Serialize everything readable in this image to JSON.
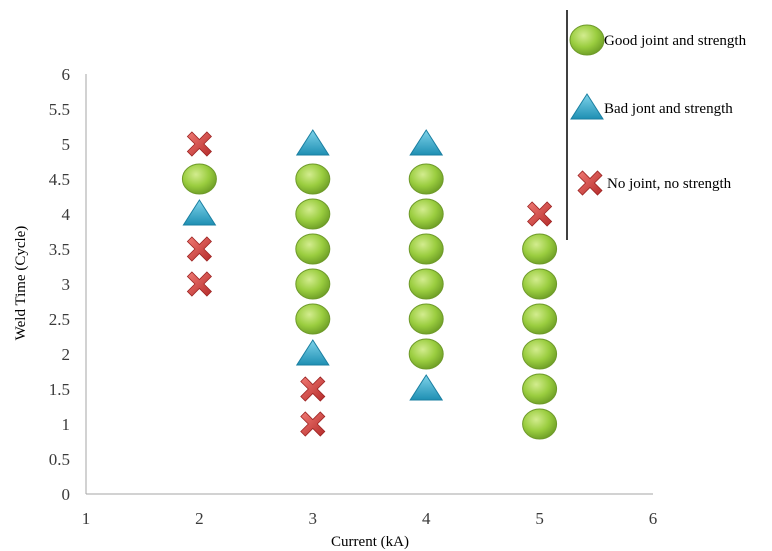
{
  "chart_data": {
    "type": "scatter",
    "title": "",
    "xlabel": "Current (kA)",
    "ylabel": "Weld Time (Cycle)",
    "xlim": [
      1,
      6
    ],
    "ylim": [
      0,
      6
    ],
    "x_ticks": [
      "1",
      "2",
      "3",
      "4",
      "5",
      "6"
    ],
    "y_ticks": [
      "0",
      "0.5",
      "1",
      "1.5",
      "2",
      "2.5",
      "3",
      "3.5",
      "4",
      "4.5",
      "5",
      "5.5",
      "6"
    ],
    "grid": false,
    "legend_position": "top-right",
    "series": [
      {
        "name": "Good joint and strength",
        "marker": "circle",
        "color": "#8cc63f",
        "points": [
          [
            2,
            4.5
          ],
          [
            3,
            4.5
          ],
          [
            3,
            4
          ],
          [
            3,
            3.5
          ],
          [
            3,
            3
          ],
          [
            3,
            2.5
          ],
          [
            4,
            4.5
          ],
          [
            4,
            4
          ],
          [
            4,
            3.5
          ],
          [
            4,
            3
          ],
          [
            4,
            2.5
          ],
          [
            4,
            2
          ],
          [
            5,
            3.5
          ],
          [
            5,
            3
          ],
          [
            5,
            2.5
          ],
          [
            5,
            2
          ],
          [
            5,
            1.5
          ],
          [
            5,
            1
          ]
        ]
      },
      {
        "name": "Bad jont and strength",
        "marker": "triangle",
        "color": "#2aa6c4",
        "points": [
          [
            2,
            4
          ],
          [
            3,
            5
          ],
          [
            3,
            2
          ],
          [
            4,
            5
          ],
          [
            4,
            1.5
          ]
        ]
      },
      {
        "name": "No joint, no strength",
        "marker": "cross",
        "color": "#d9403e",
        "points": [
          [
            2,
            5
          ],
          [
            2,
            3.5
          ],
          [
            2,
            3
          ],
          [
            3,
            1.5
          ],
          [
            3,
            1
          ],
          [
            5,
            4
          ]
        ]
      }
    ]
  }
}
